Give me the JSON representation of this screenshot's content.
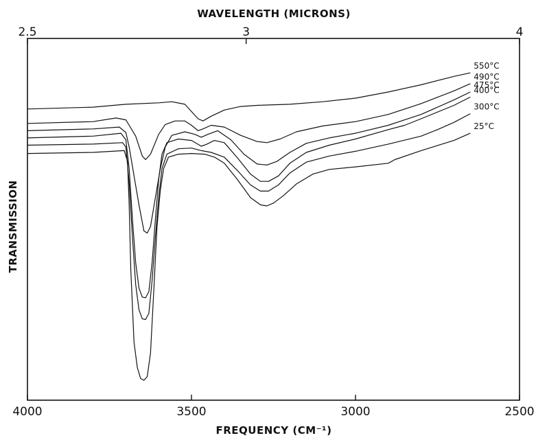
{
  "chart_data": {
    "type": "line",
    "title": "",
    "xlabel": "FREQUENCY (CM⁻¹)",
    "x2label": "WAVELENGTH (MICRONS)",
    "ylabel": "TRANSMISSION",
    "xlim": [
      4000,
      2500
    ],
    "ylim": [
      0,
      1
    ],
    "grid": false,
    "bottom_ticks": [
      {
        "value": 4000,
        "label": "4000"
      },
      {
        "value": 3500,
        "label": "3500"
      },
      {
        "value": 3000,
        "label": "3000"
      },
      {
        "value": 2500,
        "label": "2500"
      }
    ],
    "top_ticks": [
      {
        "value": 2.5,
        "label": "2.5"
      },
      {
        "value": 3,
        "label": "3"
      },
      {
        "value": 4,
        "label": "4"
      }
    ],
    "series": [
      {
        "name": "550°C",
        "points": [
          [
            4000,
            0.805
          ],
          [
            3800,
            0.81
          ],
          [
            3700,
            0.818
          ],
          [
            3600,
            0.822
          ],
          [
            3560,
            0.825
          ],
          [
            3520,
            0.818
          ],
          [
            3500,
            0.798
          ],
          [
            3480,
            0.778
          ],
          [
            3465,
            0.772
          ],
          [
            3440,
            0.785
          ],
          [
            3400,
            0.802
          ],
          [
            3350,
            0.812
          ],
          [
            3300,
            0.815
          ],
          [
            3200,
            0.818
          ],
          [
            3100,
            0.825
          ],
          [
            3000,
            0.835
          ],
          [
            2900,
            0.852
          ],
          [
            2800,
            0.872
          ],
          [
            2700,
            0.895
          ],
          [
            2650,
            0.905
          ]
        ]
      },
      {
        "name": "490°C",
        "points": [
          [
            4000,
            0.765
          ],
          [
            3800,
            0.77
          ],
          [
            3730,
            0.78
          ],
          [
            3700,
            0.775
          ],
          [
            3690,
            0.76
          ],
          [
            3670,
            0.73
          ],
          [
            3650,
            0.675
          ],
          [
            3640,
            0.665
          ],
          [
            3625,
            0.68
          ],
          [
            3600,
            0.735
          ],
          [
            3580,
            0.762
          ],
          [
            3550,
            0.772
          ],
          [
            3520,
            0.772
          ],
          [
            3500,
            0.76
          ],
          [
            3480,
            0.745
          ],
          [
            3465,
            0.75
          ],
          [
            3440,
            0.76
          ],
          [
            3400,
            0.755
          ],
          [
            3350,
            0.732
          ],
          [
            3300,
            0.715
          ],
          [
            3270,
            0.712
          ],
          [
            3230,
            0.722
          ],
          [
            3180,
            0.742
          ],
          [
            3100,
            0.758
          ],
          [
            3000,
            0.77
          ],
          [
            2900,
            0.79
          ],
          [
            2800,
            0.82
          ],
          [
            2700,
            0.855
          ],
          [
            2650,
            0.875
          ]
        ]
      },
      {
        "name": "475°C",
        "points": [
          [
            4000,
            0.745
          ],
          [
            3800,
            0.75
          ],
          [
            3720,
            0.755
          ],
          [
            3700,
            0.74
          ],
          [
            3690,
            0.7
          ],
          [
            3675,
            0.62
          ],
          [
            3660,
            0.54
          ],
          [
            3645,
            0.468
          ],
          [
            3635,
            0.462
          ],
          [
            3625,
            0.48
          ],
          [
            3610,
            0.56
          ],
          [
            3595,
            0.64
          ],
          [
            3580,
            0.7
          ],
          [
            3560,
            0.732
          ],
          [
            3520,
            0.742
          ],
          [
            3490,
            0.735
          ],
          [
            3470,
            0.727
          ],
          [
            3450,
            0.735
          ],
          [
            3420,
            0.745
          ],
          [
            3380,
            0.72
          ],
          [
            3340,
            0.68
          ],
          [
            3300,
            0.653
          ],
          [
            3270,
            0.65
          ],
          [
            3240,
            0.66
          ],
          [
            3200,
            0.685
          ],
          [
            3150,
            0.71
          ],
          [
            3080,
            0.725
          ],
          [
            3000,
            0.738
          ],
          [
            2900,
            0.76
          ],
          [
            2850,
            0.775
          ],
          [
            2800,
            0.79
          ],
          [
            2700,
            0.83
          ],
          [
            2650,
            0.852
          ]
        ]
      },
      {
        "name": "400°C",
        "points": [
          [
            4000,
            0.725
          ],
          [
            3800,
            0.73
          ],
          [
            3715,
            0.738
          ],
          [
            3700,
            0.72
          ],
          [
            3690,
            0.64
          ],
          [
            3680,
            0.5
          ],
          [
            3670,
            0.38
          ],
          [
            3660,
            0.31
          ],
          [
            3650,
            0.285
          ],
          [
            3640,
            0.283
          ],
          [
            3630,
            0.3
          ],
          [
            3620,
            0.38
          ],
          [
            3610,
            0.5
          ],
          [
            3600,
            0.61
          ],
          [
            3590,
            0.68
          ],
          [
            3575,
            0.712
          ],
          [
            3540,
            0.722
          ],
          [
            3500,
            0.718
          ],
          [
            3470,
            0.702
          ],
          [
            3455,
            0.707
          ],
          [
            3430,
            0.718
          ],
          [
            3400,
            0.712
          ],
          [
            3360,
            0.67
          ],
          [
            3320,
            0.625
          ],
          [
            3290,
            0.605
          ],
          [
            3265,
            0.605
          ],
          [
            3235,
            0.62
          ],
          [
            3200,
            0.655
          ],
          [
            3150,
            0.685
          ],
          [
            3080,
            0.705
          ],
          [
            3000,
            0.722
          ],
          [
            2900,
            0.748
          ],
          [
            2850,
            0.76
          ],
          [
            2800,
            0.778
          ],
          [
            2700,
            0.815
          ],
          [
            2650,
            0.838
          ]
        ]
      },
      {
        "name": "300°C",
        "points": [
          [
            4000,
            0.705
          ],
          [
            3800,
            0.708
          ],
          [
            3710,
            0.712
          ],
          [
            3700,
            0.7
          ],
          [
            3690,
            0.6
          ],
          [
            3680,
            0.45
          ],
          [
            3670,
            0.32
          ],
          [
            3660,
            0.25
          ],
          [
            3650,
            0.225
          ],
          [
            3640,
            0.223
          ],
          [
            3630,
            0.24
          ],
          [
            3620,
            0.33
          ],
          [
            3610,
            0.45
          ],
          [
            3600,
            0.56
          ],
          [
            3590,
            0.64
          ],
          [
            3575,
            0.68
          ],
          [
            3540,
            0.695
          ],
          [
            3500,
            0.697
          ],
          [
            3470,
            0.69
          ],
          [
            3440,
            0.685
          ],
          [
            3400,
            0.672
          ],
          [
            3360,
            0.635
          ],
          [
            3320,
            0.595
          ],
          [
            3290,
            0.578
          ],
          [
            3265,
            0.578
          ],
          [
            3235,
            0.595
          ],
          [
            3200,
            0.628
          ],
          [
            3150,
            0.658
          ],
          [
            3080,
            0.675
          ],
          [
            3000,
            0.688
          ],
          [
            2900,
            0.708
          ],
          [
            2800,
            0.73
          ],
          [
            2750,
            0.748
          ],
          [
            2700,
            0.768
          ],
          [
            2650,
            0.792
          ]
        ]
      },
      {
        "name": "25°C",
        "points": [
          [
            4000,
            0.682
          ],
          [
            3800,
            0.685
          ],
          [
            3705,
            0.69
          ],
          [
            3695,
            0.66
          ],
          [
            3690,
            0.54
          ],
          [
            3685,
            0.36
          ],
          [
            3675,
            0.16
          ],
          [
            3665,
            0.09
          ],
          [
            3655,
            0.06
          ],
          [
            3645,
            0.055
          ],
          [
            3635,
            0.065
          ],
          [
            3625,
            0.13
          ],
          [
            3615,
            0.3
          ],
          [
            3605,
            0.48
          ],
          [
            3595,
            0.58
          ],
          [
            3585,
            0.64
          ],
          [
            3570,
            0.672
          ],
          [
            3540,
            0.68
          ],
          [
            3500,
            0.682
          ],
          [
            3460,
            0.68
          ],
          [
            3430,
            0.672
          ],
          [
            3400,
            0.655
          ],
          [
            3360,
            0.61
          ],
          [
            3320,
            0.56
          ],
          [
            3290,
            0.54
          ],
          [
            3270,
            0.537
          ],
          [
            3250,
            0.545
          ],
          [
            3220,
            0.565
          ],
          [
            3180,
            0.598
          ],
          [
            3130,
            0.625
          ],
          [
            3080,
            0.638
          ],
          [
            3000,
            0.645
          ],
          [
            2900,
            0.655
          ],
          [
            2880,
            0.665
          ],
          [
            2800,
            0.69
          ],
          [
            2700,
            0.718
          ],
          [
            2650,
            0.738
          ]
        ]
      }
    ]
  }
}
